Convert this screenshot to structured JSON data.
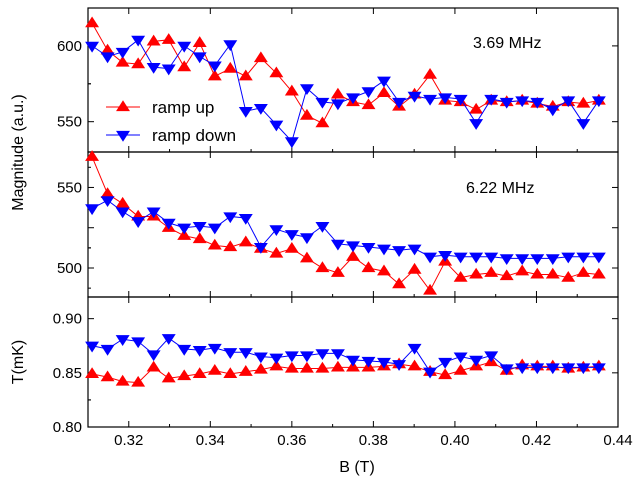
{
  "chart_data": {
    "type": "line",
    "xlabel": "B (T)",
    "xlim": [
      0.31,
      0.44
    ],
    "xticks": [
      0.32,
      0.34,
      0.36,
      0.38,
      0.4,
      0.42,
      0.44
    ],
    "xtick_labels": [
      "0.32",
      "0.34",
      "0.36",
      "0.38",
      "0.40",
      "0.42",
      "0.44"
    ],
    "shared_ylabel": "Magnitude (a.u.)",
    "legend": [
      {
        "name": "ramp up",
        "color": "#ff0000",
        "marker": "triangle-up"
      },
      {
        "name": "ramp down",
        "color": "#0000ff",
        "marker": "triangle-down"
      }
    ],
    "panels": [
      {
        "annotation": "3.69 MHz",
        "ylabel": "",
        "ylim": [
          530,
          625
        ],
        "yticks": [
          550,
          600
        ],
        "ytick_labels": [
          "550",
          "600"
        ],
        "series": [
          {
            "name": "ramp up",
            "color": "#ff0000",
            "marker": "triangle-up",
            "x": [
              0.311,
              0.3148,
              0.3185,
              0.3223,
              0.3261,
              0.3298,
              0.3336,
              0.3374,
              0.3411,
              0.3449,
              0.3487,
              0.3524,
              0.3562,
              0.36,
              0.3637,
              0.3675,
              0.3713,
              0.375,
              0.3788,
              0.3826,
              0.3863,
              0.3901,
              0.3939,
              0.3976,
              0.4014,
              0.4052,
              0.4089,
              0.4127,
              0.4165,
              0.4202,
              0.424,
              0.4278,
              0.4315,
              0.4353
            ],
            "y": [
              615,
              597,
              589,
              588,
              603,
              604,
              586,
              602,
              580,
              585,
              580,
              592,
              582,
              570,
              554,
              549,
              568,
              563,
              561,
              569,
              560,
              568,
              581,
              564,
              563,
              558,
              564,
              563,
              564,
              562,
              560,
              563,
              562,
              564
            ]
          },
          {
            "name": "ramp down",
            "color": "#0000ff",
            "marker": "triangle-down",
            "x": [
              0.311,
              0.3148,
              0.3185,
              0.3223,
              0.3261,
              0.3298,
              0.3336,
              0.3374,
              0.3411,
              0.3449,
              0.3487,
              0.3524,
              0.3562,
              0.36,
              0.3637,
              0.3675,
              0.3713,
              0.375,
              0.3788,
              0.3826,
              0.3863,
              0.3901,
              0.3939,
              0.3976,
              0.4014,
              0.4052,
              0.4089,
              0.4127,
              0.4165,
              0.4202,
              0.424,
              0.4278,
              0.4315,
              0.4353
            ],
            "y": [
              600,
              593,
              596,
              604,
              586,
              585,
              600,
              593,
              587,
              601,
              557,
              559,
              548,
              537,
              572,
              563,
              562,
              566,
              570,
              577,
              563,
              567,
              565,
              566,
              565,
              549,
              565,
              563,
              564,
              563,
              558,
              564,
              549,
              564
            ]
          }
        ]
      },
      {
        "annotation": "6.22 MHz",
        "ylabel": "",
        "ylim": [
          482,
          572
        ],
        "yticks": [
          500,
          525,
          550
        ],
        "ytick_labels": [
          "500",
          "",
          "550"
        ],
        "series": [
          {
            "name": "ramp up",
            "color": "#ff0000",
            "marker": "triangle-up",
            "x": [
              0.311,
              0.3148,
              0.3185,
              0.3223,
              0.3261,
              0.3298,
              0.3336,
              0.3374,
              0.3411,
              0.3449,
              0.3487,
              0.3524,
              0.3562,
              0.36,
              0.3637,
              0.3675,
              0.3713,
              0.375,
              0.3788,
              0.3826,
              0.3863,
              0.3901,
              0.3939,
              0.3976,
              0.4014,
              0.4052,
              0.4089,
              0.4127,
              0.4165,
              0.4202,
              0.424,
              0.4278,
              0.4315,
              0.4353
            ],
            "y": [
              569,
              546,
              540,
              532,
              532,
              525,
              520,
              518,
              514,
              513,
              516,
              512,
              509,
              512,
              506,
              500,
              497,
              507,
              500,
              498,
              490,
              499,
              486,
              504,
              494,
              496,
              497,
              495,
              498,
              496,
              496,
              494,
              497,
              496
            ]
          },
          {
            "name": "ramp down",
            "color": "#0000ff",
            "marker": "triangle-down",
            "x": [
              0.311,
              0.3148,
              0.3185,
              0.3223,
              0.3261,
              0.3298,
              0.3336,
              0.3374,
              0.3411,
              0.3449,
              0.3487,
              0.3524,
              0.3562,
              0.36,
              0.3637,
              0.3675,
              0.3713,
              0.375,
              0.3788,
              0.3826,
              0.3863,
              0.3901,
              0.3939,
              0.3976,
              0.4014,
              0.4052,
              0.4089,
              0.4127,
              0.4165,
              0.4202,
              0.424,
              0.4278,
              0.4315,
              0.4353
            ],
            "y": [
              537,
              542,
              535,
              529,
              535,
              528,
              525,
              526,
              525,
              532,
              531,
              513,
              524,
              521,
              519,
              526,
              515,
              514,
              513,
              512,
              511,
              512,
              507,
              508,
              507,
              507,
              507,
              506,
              506,
              506,
              506,
              507,
              507,
              507
            ]
          }
        ]
      },
      {
        "annotation": "",
        "ylabel": "T(mK)",
        "ylim": [
          0.8,
          0.92
        ],
        "yticks": [
          0.8,
          0.85,
          0.9
        ],
        "ytick_labels": [
          "0.80",
          "0.85",
          "0.90"
        ],
        "series": [
          {
            "name": "ramp up",
            "color": "#ff0000",
            "marker": "triangle-up",
            "x": [
              0.311,
              0.3148,
              0.3185,
              0.3223,
              0.3261,
              0.3298,
              0.3336,
              0.3374,
              0.3411,
              0.3449,
              0.3487,
              0.3524,
              0.3562,
              0.36,
              0.3637,
              0.3675,
              0.3713,
              0.375,
              0.3788,
              0.3826,
              0.3863,
              0.3901,
              0.3939,
              0.3976,
              0.4014,
              0.4052,
              0.4089,
              0.4127,
              0.4165,
              0.4202,
              0.424,
              0.4278,
              0.4315,
              0.4353
            ],
            "y": [
              0.849,
              0.846,
              0.842,
              0.841,
              0.855,
              0.845,
              0.847,
              0.849,
              0.852,
              0.849,
              0.851,
              0.853,
              0.856,
              0.854,
              0.854,
              0.854,
              0.855,
              0.855,
              0.855,
              0.856,
              0.858,
              0.856,
              0.851,
              0.848,
              0.852,
              0.856,
              0.86,
              0.852,
              0.857,
              0.856,
              0.856,
              0.854,
              0.855,
              0.856
            ]
          },
          {
            "name": "ramp down",
            "color": "#0000ff",
            "marker": "triangle-down",
            "x": [
              0.311,
              0.3148,
              0.3185,
              0.3223,
              0.3261,
              0.3298,
              0.3336,
              0.3374,
              0.3411,
              0.3449,
              0.3487,
              0.3524,
              0.3562,
              0.36,
              0.3637,
              0.3675,
              0.3713,
              0.375,
              0.3788,
              0.3826,
              0.3863,
              0.3901,
              0.3939,
              0.3976,
              0.4014,
              0.4052,
              0.4089,
              0.4127,
              0.4165,
              0.4202,
              0.424,
              0.4278,
              0.4315,
              0.4353
            ],
            "y": [
              0.875,
              0.872,
              0.881,
              0.879,
              0.867,
              0.882,
              0.872,
              0.871,
              0.873,
              0.869,
              0.869,
              0.865,
              0.864,
              0.866,
              0.866,
              0.868,
              0.868,
              0.862,
              0.861,
              0.86,
              0.858,
              0.873,
              0.851,
              0.86,
              0.865,
              0.862,
              0.866,
              0.854,
              0.855,
              0.855,
              0.855,
              0.855,
              0.855,
              0.855
            ]
          }
        ]
      }
    ]
  }
}
